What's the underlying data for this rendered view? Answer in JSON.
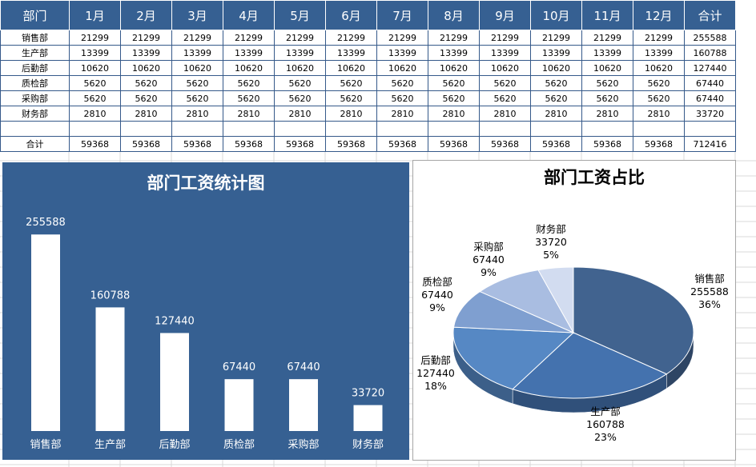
{
  "table": {
    "headers": [
      "部门",
      "1月",
      "2月",
      "3月",
      "4月",
      "5月",
      "6月",
      "7月",
      "8月",
      "9月",
      "10月",
      "11月",
      "12月",
      "合计"
    ],
    "rows": [
      [
        "销售部",
        "21299",
        "21299",
        "21299",
        "21299",
        "21299",
        "21299",
        "21299",
        "21299",
        "21299",
        "21299",
        "21299",
        "21299",
        "255588"
      ],
      [
        "生产部",
        "13399",
        "13399",
        "13399",
        "13399",
        "13399",
        "13399",
        "13399",
        "13399",
        "13399",
        "13399",
        "13399",
        "13399",
        "160788"
      ],
      [
        "后勤部",
        "10620",
        "10620",
        "10620",
        "10620",
        "10620",
        "10620",
        "10620",
        "10620",
        "10620",
        "10620",
        "10620",
        "10620",
        "127440"
      ],
      [
        "质检部",
        "5620",
        "5620",
        "5620",
        "5620",
        "5620",
        "5620",
        "5620",
        "5620",
        "5620",
        "5620",
        "5620",
        "5620",
        "67440"
      ],
      [
        "采购部",
        "5620",
        "5620",
        "5620",
        "5620",
        "5620",
        "5620",
        "5620",
        "5620",
        "5620",
        "5620",
        "5620",
        "5620",
        "67440"
      ],
      [
        "财务部",
        "2810",
        "2810",
        "2810",
        "2810",
        "2810",
        "2810",
        "2810",
        "2810",
        "2810",
        "2810",
        "2810",
        "2810",
        "33720"
      ],
      [
        "",
        "",
        "",
        "",
        "",
        "",
        "",
        "",
        "",
        "",
        "",
        "",
        "",
        ""
      ],
      [
        "合计",
        "59368",
        "59368",
        "59368",
        "59368",
        "59368",
        "59368",
        "59368",
        "59368",
        "59368",
        "59368",
        "59368",
        "59368",
        "712416"
      ]
    ]
  },
  "chart_data": [
    {
      "type": "bar",
      "title": "部门工资统计图",
      "categories": [
        "销售部",
        "生产部",
        "后勤部",
        "质检部",
        "采购部",
        "财务部"
      ],
      "values": [
        255588,
        160788,
        127440,
        67440,
        67440,
        33720
      ],
      "data_labels": [
        "255588",
        "160788",
        "127440",
        "67440",
        "67440",
        "33720"
      ],
      "grid": false,
      "legend": "none",
      "colors": {
        "background": "#366092",
        "bars": "#ffffff",
        "text": "#ffffff"
      }
    },
    {
      "type": "pie",
      "title": "部门工资占比",
      "categories": [
        "销售部",
        "生产部",
        "后勤部",
        "质检部",
        "采购部",
        "财务部"
      ],
      "values": [
        255588,
        160788,
        127440,
        67440,
        67440,
        33720
      ],
      "value_labels": [
        "255588",
        "160788",
        "127440",
        "67440",
        "67440",
        "33720"
      ],
      "percent_labels": [
        "36%",
        "23%",
        "18%",
        "9%",
        "9%",
        "5%"
      ],
      "style": "3d",
      "legend": "none",
      "colors": [
        "#41638f",
        "#4472ae",
        "#5688c4",
        "#7f9fd0",
        "#a9bde1",
        "#d2dcf0"
      ]
    }
  ]
}
